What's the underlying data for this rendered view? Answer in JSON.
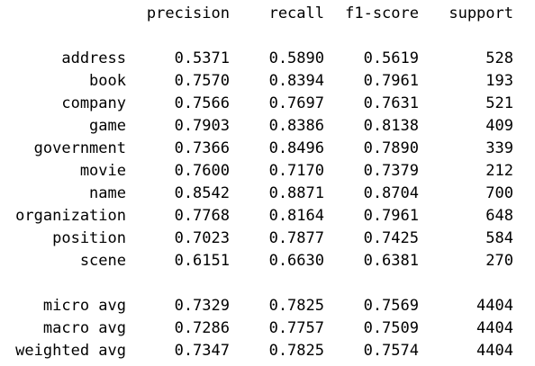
{
  "columns": [
    "precision",
    "recall",
    "f1-score",
    "support"
  ],
  "rows": [
    {
      "label": "address",
      "precision": "0.5371",
      "recall": "0.5890",
      "f1": "0.5619",
      "support": "528"
    },
    {
      "label": "book",
      "precision": "0.7570",
      "recall": "0.8394",
      "f1": "0.7961",
      "support": "193"
    },
    {
      "label": "company",
      "precision": "0.7566",
      "recall": "0.7697",
      "f1": "0.7631",
      "support": "521"
    },
    {
      "label": "game",
      "precision": "0.7903",
      "recall": "0.8386",
      "f1": "0.8138",
      "support": "409"
    },
    {
      "label": "government",
      "precision": "0.7366",
      "recall": "0.8496",
      "f1": "0.7890",
      "support": "339"
    },
    {
      "label": "movie",
      "precision": "0.7600",
      "recall": "0.7170",
      "f1": "0.7379",
      "support": "212"
    },
    {
      "label": "name",
      "precision": "0.8542",
      "recall": "0.8871",
      "f1": "0.8704",
      "support": "700"
    },
    {
      "label": "organization",
      "precision": "0.7768",
      "recall": "0.8164",
      "f1": "0.7961",
      "support": "648"
    },
    {
      "label": "position",
      "precision": "0.7023",
      "recall": "0.7877",
      "f1": "0.7425",
      "support": "584"
    },
    {
      "label": "scene",
      "precision": "0.6151",
      "recall": "0.6630",
      "f1": "0.6381",
      "support": "270"
    }
  ],
  "averages": [
    {
      "label": "micro avg",
      "precision": "0.7329",
      "recall": "0.7825",
      "f1": "0.7569",
      "support": "4404"
    },
    {
      "label": "macro avg",
      "precision": "0.7286",
      "recall": "0.7757",
      "f1": "0.7509",
      "support": "4404"
    },
    {
      "label": "weighted avg",
      "precision": "0.7347",
      "recall": "0.7825",
      "f1": "0.7574",
      "support": "4404"
    }
  ]
}
